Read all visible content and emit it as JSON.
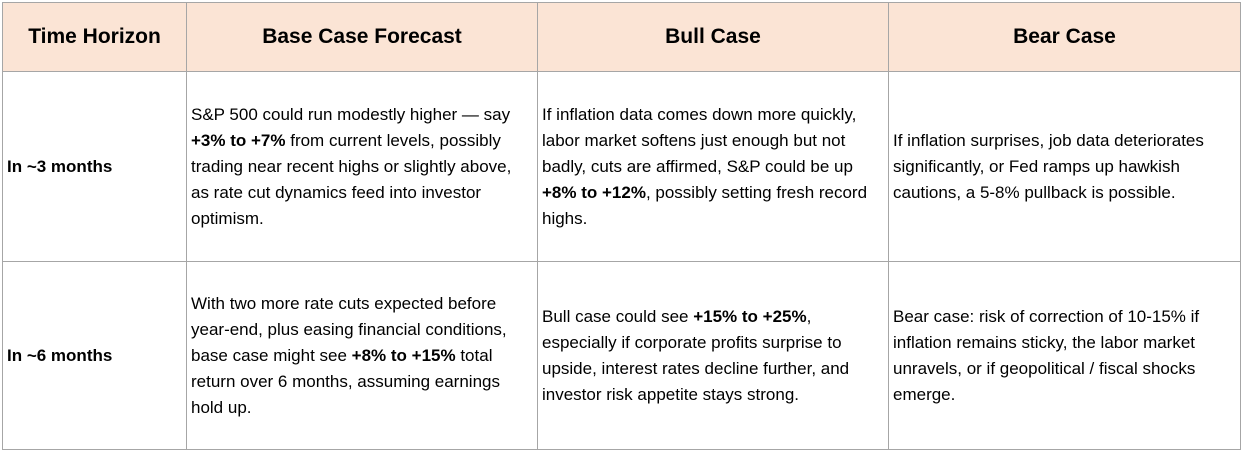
{
  "headers": [
    "Time Horizon",
    "Base Case Forecast",
    "Bull Case",
    "Bear Case"
  ],
  "rows": [
    {
      "horizon": "In ~3 months",
      "base": [
        {
          "t": "S&P 500 could run modestly higher — say ",
          "b": false
        },
        {
          "t": "+3% to +7%",
          "b": true
        },
        {
          "t": " from current levels, possibly trading near recent highs or slightly above, as rate cut dynamics feed into investor optimism.",
          "b": false
        }
      ],
      "bull": [
        {
          "t": "If inflation data comes down more quickly, labor market softens just enough but not badly, cuts are affirmed, S&P could be up ",
          "b": false
        },
        {
          "t": "+8% to +12%",
          "b": true
        },
        {
          "t": ", possibly setting fresh record highs.",
          "b": false
        }
      ],
      "bear": [
        {
          "t": "If inflation surprises, job data deteriorates significantly, or Fed ramps up hawkish cautions, a 5-8% pullback is possible.",
          "b": false
        }
      ]
    },
    {
      "horizon": "In ~6 months",
      "base": [
        {
          "t": "With two more rate cuts expected before year-end, plus easing financial conditions, base case might see ",
          "b": false
        },
        {
          "t": "+8% to +15%",
          "b": true
        },
        {
          "t": " total return over 6 months, assuming earnings hold up.",
          "b": false
        }
      ],
      "bull": [
        {
          "t": "Bull case could see ",
          "b": false
        },
        {
          "t": "+15% to +25%",
          "b": true
        },
        {
          "t": ", especially if corporate profits surprise to upside, interest rates decline further, and investor risk appetite stays strong.",
          "b": false
        }
      ],
      "bear": [
        {
          "t": "Bear case: risk of correction of 10-15% if inflation remains sticky, the labor market unravels, or if geopolitical / fiscal shocks emerge.",
          "b": false
        }
      ]
    }
  ],
  "colors": {
    "header_bg": "#fbe4d5",
    "border": "#a6a6a6"
  }
}
